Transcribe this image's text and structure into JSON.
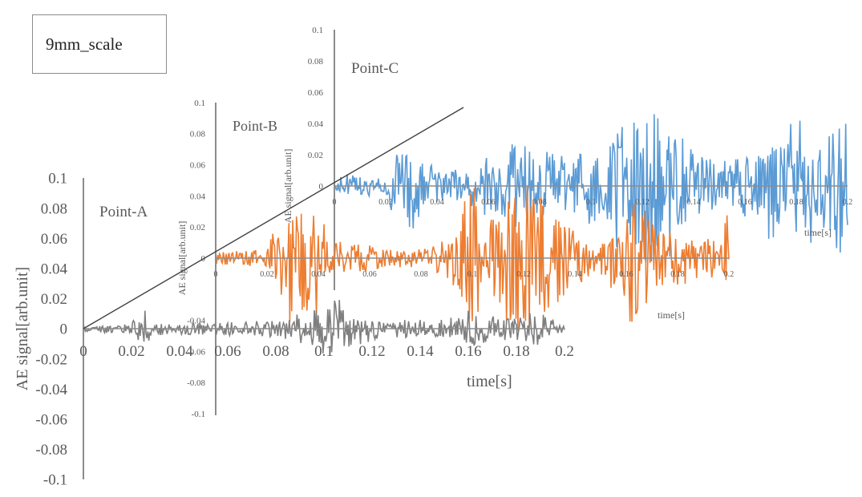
{
  "scale_label": "9mm_scale",
  "chart_data": [
    {
      "type": "line",
      "name": "Point-A",
      "title": "Point-A",
      "xlabel": "time[s]",
      "ylabel": "AE signal[arb.unit]",
      "xlim": [
        0,
        0.2
      ],
      "ylim": [
        -0.1,
        0.1
      ],
      "x_ticks": [
        0,
        0.02,
        0.04,
        0.06,
        0.08,
        0.1,
        0.12,
        0.14,
        0.16,
        0.18,
        0.2
      ],
      "y_ticks": [
        0.1,
        0.08,
        0.06,
        0.04,
        0.02,
        0,
        -0.02,
        -0.04,
        -0.06,
        -0.08,
        -0.1
      ],
      "color": "#7f7f7f",
      "envelope": [
        [
          0,
          0.002
        ],
        [
          0.02,
          0.004
        ],
        [
          0.025,
          0.014
        ],
        [
          0.03,
          0.005
        ],
        [
          0.05,
          0.004
        ],
        [
          0.08,
          0.006
        ],
        [
          0.095,
          0.012
        ],
        [
          0.1,
          0.022
        ],
        [
          0.105,
          0.025
        ],
        [
          0.11,
          0.012
        ],
        [
          0.13,
          0.006
        ],
        [
          0.15,
          0.006
        ],
        [
          0.158,
          0.01
        ],
        [
          0.16,
          0.02
        ],
        [
          0.165,
          0.01
        ],
        [
          0.18,
          0.008
        ],
        [
          0.19,
          0.012
        ],
        [
          0.2,
          0.003
        ]
      ]
    },
    {
      "type": "line",
      "name": "Point-B",
      "title": "Point-B",
      "xlabel": "time[s]",
      "ylabel": "AE signal[arb.unit]",
      "xlim": [
        0,
        0.2
      ],
      "ylim": [
        -0.1,
        0.1
      ],
      "x_ticks": [
        0,
        0.02,
        0.04,
        0.06,
        0.08,
        0.1,
        0.12,
        0.14,
        0.16,
        0.18,
        0.2
      ],
      "y_ticks": [
        0.1,
        0.08,
        0.06,
        0.04,
        0.02,
        0,
        -0.04,
        -0.06,
        -0.08,
        -0.1
      ],
      "color": "#ed7d31",
      "envelope": [
        [
          0,
          0.004
        ],
        [
          0.02,
          0.006
        ],
        [
          0.025,
          0.03
        ],
        [
          0.03,
          0.045
        ],
        [
          0.04,
          0.038
        ],
        [
          0.045,
          0.012
        ],
        [
          0.07,
          0.006
        ],
        [
          0.08,
          0.006
        ],
        [
          0.09,
          0.012
        ],
        [
          0.095,
          0.025
        ],
        [
          0.1,
          0.06
        ],
        [
          0.105,
          0.02
        ],
        [
          0.115,
          0.05
        ],
        [
          0.12,
          0.06
        ],
        [
          0.125,
          0.05
        ],
        [
          0.13,
          0.035
        ],
        [
          0.14,
          0.02
        ],
        [
          0.15,
          0.01
        ],
        [
          0.16,
          0.04
        ],
        [
          0.165,
          0.045
        ],
        [
          0.17,
          0.025
        ],
        [
          0.18,
          0.02
        ],
        [
          0.19,
          0.015
        ],
        [
          0.198,
          0.01
        ],
        [
          0.2,
          0.07
        ]
      ]
    },
    {
      "type": "line",
      "name": "Point-C",
      "title": "Point-C",
      "xlabel": "time[s]",
      "ylabel": "AE signal[arb.unit]",
      "xlim": [
        0,
        0.2
      ],
      "ylim": [
        -0.06,
        0.1
      ],
      "x_ticks": [
        0,
        0.02,
        0.04,
        0.06,
        0.08,
        0.1,
        0.12,
        0.14,
        0.16,
        0.18,
        0.2
      ],
      "y_ticks": [
        0.1,
        0.08,
        0.06,
        0.04,
        0.02,
        0
      ],
      "color": "#5b9bd5",
      "envelope": [
        [
          0,
          0.008
        ],
        [
          0.02,
          0.006
        ],
        [
          0.024,
          0.025
        ],
        [
          0.03,
          0.03
        ],
        [
          0.035,
          0.015
        ],
        [
          0.05,
          0.01
        ],
        [
          0.06,
          0.02
        ],
        [
          0.07,
          0.028
        ],
        [
          0.08,
          0.03
        ],
        [
          0.09,
          0.02
        ],
        [
          0.1,
          0.025
        ],
        [
          0.11,
          0.04
        ],
        [
          0.12,
          0.045
        ],
        [
          0.125,
          0.06
        ],
        [
          0.13,
          0.05
        ],
        [
          0.14,
          0.025
        ],
        [
          0.15,
          0.015
        ],
        [
          0.16,
          0.02
        ],
        [
          0.17,
          0.035
        ],
        [
          0.18,
          0.045
        ],
        [
          0.19,
          0.03
        ],
        [
          0.2,
          0.05
        ]
      ]
    }
  ]
}
